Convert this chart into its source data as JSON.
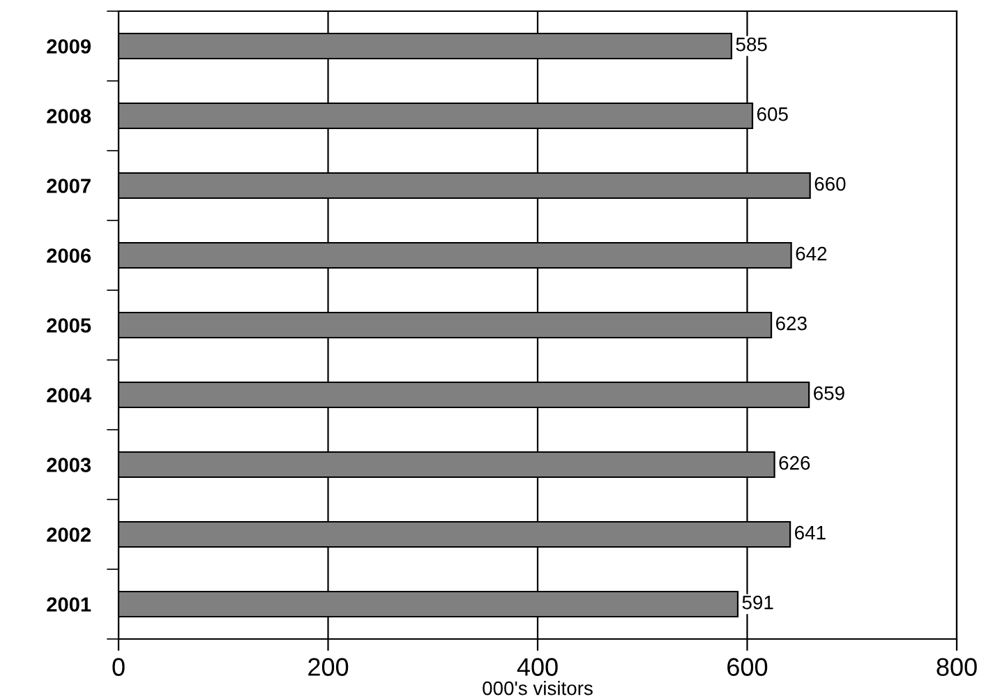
{
  "chart_data": {
    "type": "bar",
    "orientation": "horizontal",
    "categories": [
      "2009",
      "2008",
      "2007",
      "2006",
      "2005",
      "2004",
      "2003",
      "2002",
      "2001"
    ],
    "values": [
      585,
      605,
      660,
      642,
      623,
      659,
      626,
      641,
      591
    ],
    "color": "#808080",
    "xlabel": "000's visitors",
    "xlim": [
      0,
      800
    ],
    "xticks": [
      0,
      200,
      400,
      600,
      800
    ],
    "grid": "x",
    "data_labels": true
  }
}
